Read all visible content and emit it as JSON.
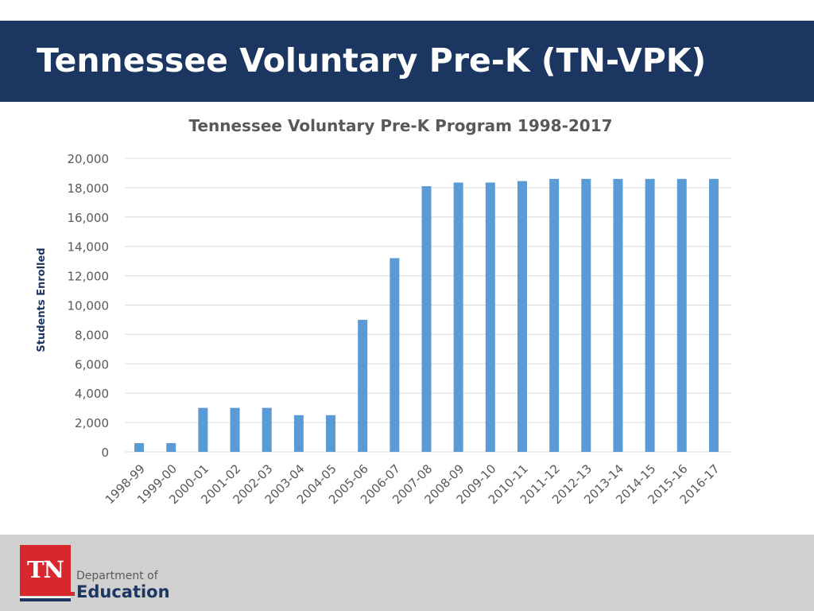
{
  "slide": {
    "title": "Tennessee Voluntary Pre-K (TN-VPK)"
  },
  "logo": {
    "mark": "TN",
    "line1": "Department of",
    "line2": "Education",
    "accent_color": "#d9272e",
    "brand_color": "#1b3660"
  },
  "colors": {
    "title_bar": "#1b3660",
    "bar": "#5b9bd5",
    "gridline": "#d9d9d9",
    "axis_text": "#595959",
    "footer": "#d0d0d0"
  },
  "chart_data": {
    "type": "bar",
    "title": "Tennessee Voluntary Pre-K Program 1998-2017",
    "xlabel": "",
    "ylabel": "Students  Enrolled",
    "ylim": [
      0,
      20000
    ],
    "yticks": [
      0,
      2000,
      4000,
      6000,
      8000,
      10000,
      12000,
      14000,
      16000,
      18000,
      20000
    ],
    "ytick_labels": [
      "0",
      "2,000",
      "4,000",
      "6,000",
      "8,000",
      "10,000",
      "12,000",
      "14,000",
      "16,000",
      "18,000",
      "20,000"
    ],
    "grid": true,
    "legend": "none",
    "categories": [
      "1998-99",
      "1999-00",
      "2000-01",
      "2001-02",
      "2002-03",
      "2003-04",
      "2004-05",
      "2005-06",
      "2006-07",
      "2007-08",
      "2008-09",
      "2009-10",
      "2010-11",
      "2011-12",
      "2012-13",
      "2013-14",
      "2014-15",
      "2015-16",
      "2016-17"
    ],
    "values": [
      600,
      600,
      3000,
      3000,
      3000,
      2500,
      2500,
      9000,
      13200,
      18100,
      18350,
      18350,
      18450,
      18600,
      18600,
      18600,
      18600,
      18600,
      18600
    ]
  }
}
